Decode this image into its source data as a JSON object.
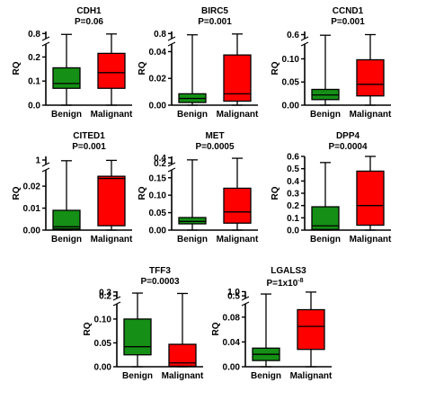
{
  "chart_data": [
    {
      "type": "box",
      "title": "CDH1",
      "pvalue": "P=0.06",
      "ylabel": "RQ",
      "categories": [
        "Benign",
        "Malignant"
      ],
      "yticks": [
        "0.0",
        "0.1",
        "0.2",
        "0.8"
      ],
      "axis_break": true,
      "lower_range": [
        0,
        0.25
      ],
      "upper_range": [
        0.7,
        0.85
      ],
      "boxes": [
        {
          "name": "Benign",
          "color": "#158f15",
          "whisker_low": 0.0,
          "q1": 0.07,
          "median": 0.09,
          "q3": 0.155,
          "whisker_high": 0.78
        },
        {
          "name": "Malignant",
          "color": "#ff0000",
          "whisker_low": 0.0,
          "q1": 0.07,
          "median": 0.135,
          "q3": 0.215,
          "whisker_high": 0.79
        }
      ]
    },
    {
      "type": "box",
      "title": "BIRC5",
      "pvalue": "P=0.001",
      "ylabel": "RQ",
      "categories": [
        "Benign",
        "Malignant"
      ],
      "yticks": [
        "0.00",
        "0.02",
        "0.04",
        "0.8"
      ],
      "axis_break": true,
      "lower_range": [
        0,
        0.045
      ],
      "upper_range": [
        0.7,
        0.85
      ],
      "boxes": [
        {
          "name": "Benign",
          "color": "#158f15",
          "whisker_low": 0.0,
          "q1": 0.002,
          "median": 0.005,
          "q3": 0.0085,
          "whisker_high": 0.77
        },
        {
          "name": "Malignant",
          "color": "#ff0000",
          "whisker_low": 0.0,
          "q1": 0.003,
          "median": 0.0085,
          "q3": 0.0375,
          "whisker_high": 0.79
        }
      ]
    },
    {
      "type": "box",
      "title": "CCND1",
      "pvalue": "P=0.001",
      "ylabel": "RQ",
      "categories": [
        "Benign",
        "Malignant"
      ],
      "yticks": [
        "0.00",
        "0.05",
        "0.10",
        "0.6"
      ],
      "axis_break": true,
      "lower_range": [
        0,
        0.13
      ],
      "upper_range": [
        0.55,
        0.65
      ],
      "boxes": [
        {
          "name": "Benign",
          "color": "#158f15",
          "whisker_low": 0.0,
          "q1": 0.012,
          "median": 0.022,
          "q3": 0.034,
          "whisker_high": 0.59
        },
        {
          "name": "Malignant",
          "color": "#ff0000",
          "whisker_low": 0.0,
          "q1": 0.02,
          "median": 0.045,
          "q3": 0.098,
          "whisker_high": 0.6
        }
      ]
    },
    {
      "type": "box",
      "title": "CITED1",
      "pvalue": "P=0.001",
      "ylabel": "RQ",
      "categories": [
        "Benign",
        "Malignant"
      ],
      "yticks": [
        "0.00",
        "0.01",
        "0.02",
        "1"
      ],
      "axis_break": true,
      "lower_range": [
        0,
        0.027
      ],
      "upper_range": [
        0.9,
        1.1
      ],
      "boxes": [
        {
          "name": "Benign",
          "color": "#158f15",
          "whisker_low": 0.0,
          "q1": 0.0005,
          "median": 0.0015,
          "q3": 0.009,
          "whisker_high": 0.98
        },
        {
          "name": "Malignant",
          "color": "#ff0000",
          "whisker_low": 0.0,
          "q1": 0.002,
          "median": 0.0235,
          "q3": 0.0245,
          "whisker_high": 0.99
        }
      ]
    },
    {
      "type": "box",
      "title": "MET",
      "pvalue": "P=0.0005",
      "ylabel": "RQ",
      "categories": [
        "Benign",
        "Malignant"
      ],
      "yticks": [
        "0.00",
        "0.05",
        "0.10",
        "0.15",
        "0.2",
        "0.4"
      ],
      "axis_break": true,
      "lower_range": [
        0,
        0.17
      ],
      "upper_range": [
        0.18,
        0.45
      ],
      "boxes": [
        {
          "name": "Benign",
          "color": "#158f15",
          "whisker_low": 0.0,
          "q1": 0.018,
          "median": 0.025,
          "q3": 0.036,
          "whisker_high": 0.32
        },
        {
          "name": "Malignant",
          "color": "#ff0000",
          "whisker_low": 0.0,
          "q1": 0.02,
          "median": 0.052,
          "q3": 0.12,
          "whisker_high": 0.38
        }
      ]
    },
    {
      "type": "box",
      "title": "DPP4",
      "pvalue": "P=0.0004",
      "ylabel": "RQ",
      "categories": [
        "Benign",
        "Malignant"
      ],
      "yticks": [
        "0.0",
        "0.1",
        "0.2",
        "0.3",
        "0.4",
        "0.5",
        "0.6"
      ],
      "axis_break": false,
      "lower_range": [
        0,
        0.6
      ],
      "boxes": [
        {
          "name": "Benign",
          "color": "#158f15",
          "whisker_low": 0.0,
          "q1": 0.005,
          "median": 0.035,
          "q3": 0.19,
          "whisker_high": 0.55
        },
        {
          "name": "Malignant",
          "color": "#ff0000",
          "whisker_low": 0.0,
          "q1": 0.04,
          "median": 0.2,
          "q3": 0.48,
          "whisker_high": 0.6
        }
      ]
    },
    {
      "type": "box",
      "title": "TFF3",
      "pvalue": "P=0.0003",
      "ylabel": "RQ",
      "categories": [
        "Benign",
        "Malignant"
      ],
      "yticks": [
        "0.00",
        "0.05",
        "0.10",
        "0.2",
        "0.3"
      ],
      "axis_break": true,
      "lower_range": [
        0,
        0.13
      ],
      "upper_range": [
        0.15,
        0.32
      ],
      "boxes": [
        {
          "name": "Benign",
          "color": "#158f15",
          "whisker_low": 0.0,
          "q1": 0.025,
          "median": 0.042,
          "q3": 0.1,
          "whisker_high": 0.27
        },
        {
          "name": "Malignant",
          "color": "#ff0000",
          "whisker_low": 0.0,
          "q1": 0.001,
          "median": 0.008,
          "q3": 0.047,
          "whisker_high": 0.26
        }
      ]
    },
    {
      "type": "box",
      "title": "LGALS3",
      "pvalue_prefix": "P=1x10",
      "pvalue_exponent": "-8",
      "ylabel": "RQ",
      "categories": [
        "Benign",
        "Malignant"
      ],
      "yticks": [
        "0.00",
        "0.04",
        "0.08",
        "0.5",
        "1.0"
      ],
      "axis_break": true,
      "lower_range": [
        0,
        0.1
      ],
      "upper_range": [
        0.3,
        1.05
      ],
      "boxes": [
        {
          "name": "Benign",
          "color": "#158f15",
          "whisker_low": 0.0,
          "q1": 0.01,
          "median": 0.02,
          "q3": 0.03,
          "whisker_high": 0.72
        },
        {
          "name": "Malignant",
          "color": "#ff0000",
          "whisker_low": 0.0,
          "q1": 0.028,
          "median": 0.065,
          "q3": 0.092,
          "whisker_high": 0.95
        }
      ]
    }
  ]
}
